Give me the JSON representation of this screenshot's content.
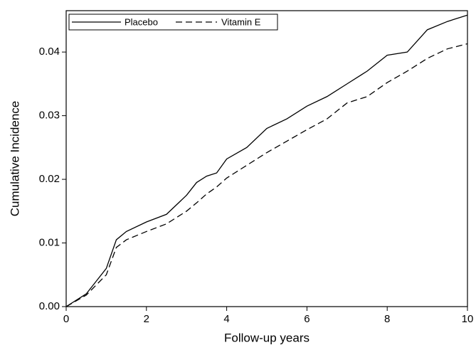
{
  "chart_data": {
    "type": "line",
    "x_label": "Follow-up years",
    "y_label": "Cumulative Incidence",
    "x": [
      0,
      0.5,
      1,
      1.25,
      1.5,
      2,
      2.5,
      3,
      3.25,
      3.5,
      3.75,
      4,
      4.5,
      5,
      5.5,
      6,
      6.5,
      7,
      7.5,
      8,
      8.5,
      9,
      9.5,
      10
    ],
    "series": [
      {
        "name": "Placebo",
        "color": "#000000",
        "line_style": "solid",
        "values": [
          0,
          0.002,
          0.006,
          0.0105,
          0.0118,
          0.0133,
          0.0145,
          0.0175,
          0.0195,
          0.0205,
          0.021,
          0.0232,
          0.025,
          0.028,
          0.0295,
          0.0315,
          0.033,
          0.035,
          0.037,
          0.0395,
          0.04,
          0.0435,
          0.0448,
          0.0458
        ]
      },
      {
        "name": "Vitamin E",
        "color": "#000000",
        "line_style": "dashed",
        "values": [
          0,
          0.0018,
          0.005,
          0.0093,
          0.0105,
          0.0118,
          0.013,
          0.015,
          0.0163,
          0.0177,
          0.0188,
          0.0202,
          0.0222,
          0.0242,
          0.026,
          0.0278,
          0.0295,
          0.032,
          0.033,
          0.0352,
          0.037,
          0.039,
          0.0405,
          0.0413
        ]
      }
    ],
    "xlim": [
      0,
      10
    ],
    "xticks": [
      0,
      2,
      4,
      6,
      8,
      10
    ],
    "ylim": [
      0,
      0.0465
    ],
    "yticks": [
      {
        "value": 0,
        "label": "0.00"
      },
      {
        "value": 0.01,
        "label": "0.01"
      },
      {
        "value": 0.02,
        "label": "0.02"
      },
      {
        "value": 0.03,
        "label": "0.03"
      },
      {
        "value": 0.04,
        "label": "0.04"
      }
    ],
    "grid": false,
    "legend": "top-left"
  }
}
